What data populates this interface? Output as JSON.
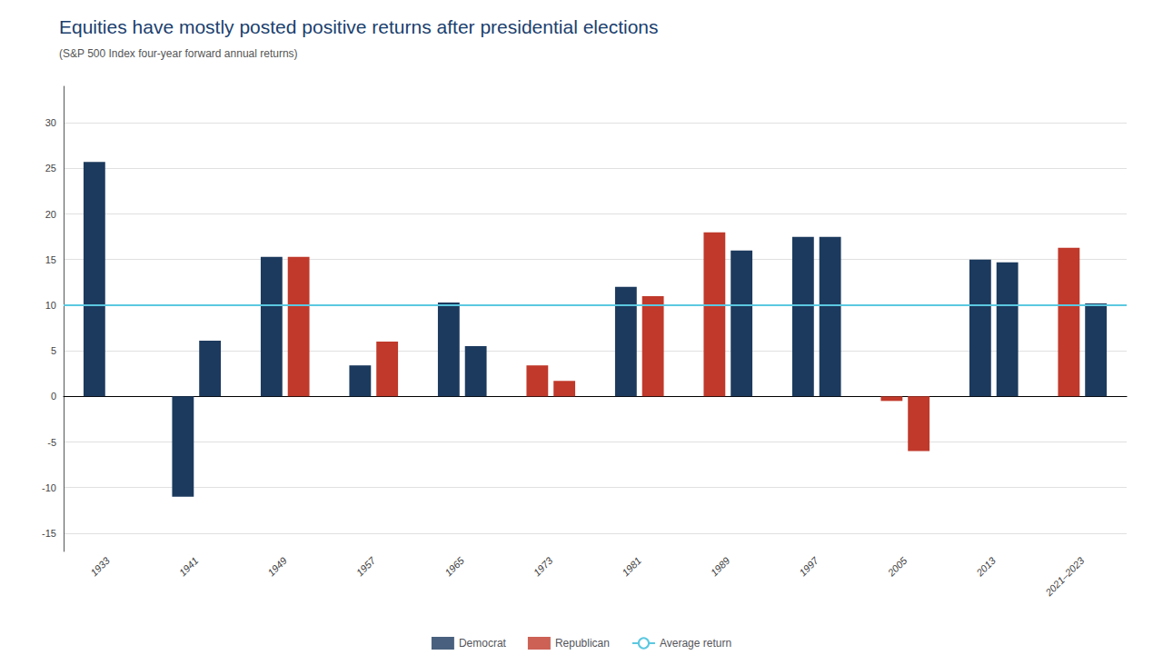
{
  "chart_data": {
    "type": "bar",
    "title": "Equities have mostly posted positive returns after presidential elections",
    "subtitle": "(S&P 500 Index four-year forward annual returns)",
    "categories": [
      "1933",
      "1941",
      "1949",
      "1957",
      "1965",
      "1973",
      "1981",
      "1989",
      "1997",
      "2005",
      "2013",
      "2021–2023"
    ],
    "parties": [
      {
        "name": "Democrat",
        "color": "#1c3a5e"
      },
      {
        "name": "Republican",
        "color": "#c0392b"
      }
    ],
    "series": [
      {
        "values": [
          25.7,
          -11.0,
          15.3,
          3.4,
          10.3,
          3.4,
          12.0,
          18.0,
          17.5,
          -0.5,
          15.0,
          16.3
        ],
        "party": [
          "Democrat",
          "Democrat",
          "Democrat",
          "Democrat",
          "Democrat",
          "Republican",
          "Democrat",
          "Republican",
          "Democrat",
          "Republican",
          "Democrat",
          "Republican"
        ]
      },
      {
        "values": [
          null,
          6.1,
          15.3,
          6.0,
          5.5,
          1.7,
          11.0,
          16.0,
          17.5,
          -6.0,
          14.7,
          10.2
        ],
        "party": [
          null,
          "Democrat",
          "Republican",
          "Republican",
          "Democrat",
          "Republican",
          "Republican",
          "Democrat",
          "Democrat",
          "Republican",
          "Democrat",
          "Democrat"
        ]
      }
    ],
    "average_return": {
      "name": "Average return",
      "value": 10,
      "color": "#5bc8e0"
    },
    "ylim": [
      -17,
      34
    ],
    "yticks": [
      -15,
      -10,
      -5,
      0,
      5,
      10,
      15,
      20,
      25,
      30
    ],
    "grid": true,
    "legend": "bottom"
  }
}
